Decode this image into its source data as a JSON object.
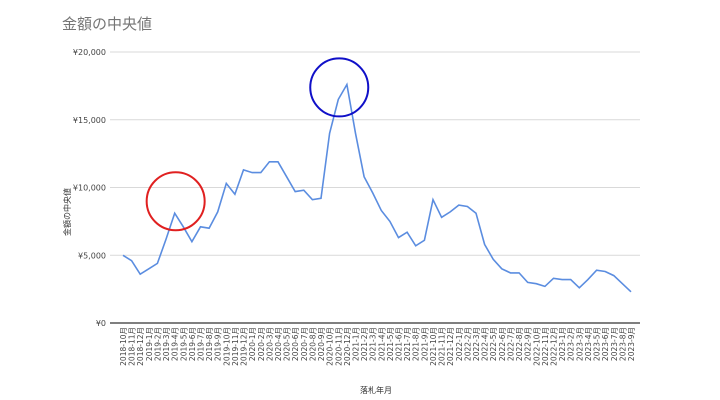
{
  "chart_data": {
    "type": "line",
    "title": "金額の中央値",
    "xlabel": "落札年月",
    "ylabel": "金額の中央値",
    "ylim": [
      0,
      20000
    ],
    "yticks": [
      "¥0",
      "¥5,000",
      "¥10,000",
      "¥15,000",
      "¥20,000"
    ],
    "grid": true,
    "line_color": "#5b8de0",
    "categories": [
      "2018-10月",
      "2018-11月",
      "2018-12月",
      "2019-1月",
      "2019-2月",
      "2019-3月",
      "2019-4月",
      "2019-5月",
      "2019-6月",
      "2019-7月",
      "2019-8月",
      "2019-9月",
      "2019-10月",
      "2019-11月",
      "2019-12月",
      "2020-1月",
      "2020-2月",
      "2020-3月",
      "2020-4月",
      "2020-5月",
      "2020-6月",
      "2020-7月",
      "2020-8月",
      "2020-9月",
      "2020-10月",
      "2020-11月",
      "2020-12月",
      "2021-1月",
      "2021-2月",
      "2021-3月",
      "2021-4月",
      "2021-5月",
      "2021-6月",
      "2021-7月",
      "2021-8月",
      "2021-9月",
      "2021-10月",
      "2021-11月",
      "2021-12月",
      "2022-1月",
      "2022-2月",
      "2022-3月",
      "2022-4月",
      "2022-5月",
      "2022-6月",
      "2022-7月",
      "2022-8月",
      "2022-9月",
      "2022-10月",
      "2022-11月",
      "2022-12月",
      "2023-1月",
      "2023-2月",
      "2023-3月",
      "2023-4月",
      "2023-5月",
      "2023-6月",
      "2023-7月",
      "2023-8月",
      "2023-9月"
    ],
    "values": [
      5000,
      4600,
      3600,
      4000,
      4400,
      6200,
      8100,
      7100,
      6000,
      7100,
      7000,
      8200,
      10300,
      9500,
      11300,
      11100,
      11100,
      11900,
      11900,
      10800,
      9700,
      9800,
      9100,
      9200,
      14000,
      16500,
      17600,
      14000,
      10800,
      9600,
      8300,
      7500,
      6300,
      6700,
      5700,
      6100,
      9100,
      7800,
      8200,
      8700,
      8600,
      8100,
      5800,
      4700,
      4000,
      3700,
      3700,
      3000,
      2900,
      2700,
      3300,
      3200,
      3200,
      2600,
      3200,
      3900,
      3800,
      3500,
      2900,
      2300
    ],
    "annotations": [
      {
        "type": "circle",
        "color": "#e02020",
        "at": "2019-4月"
      },
      {
        "type": "circle",
        "color": "#1010c8",
        "at": "2020-11月"
      }
    ]
  }
}
